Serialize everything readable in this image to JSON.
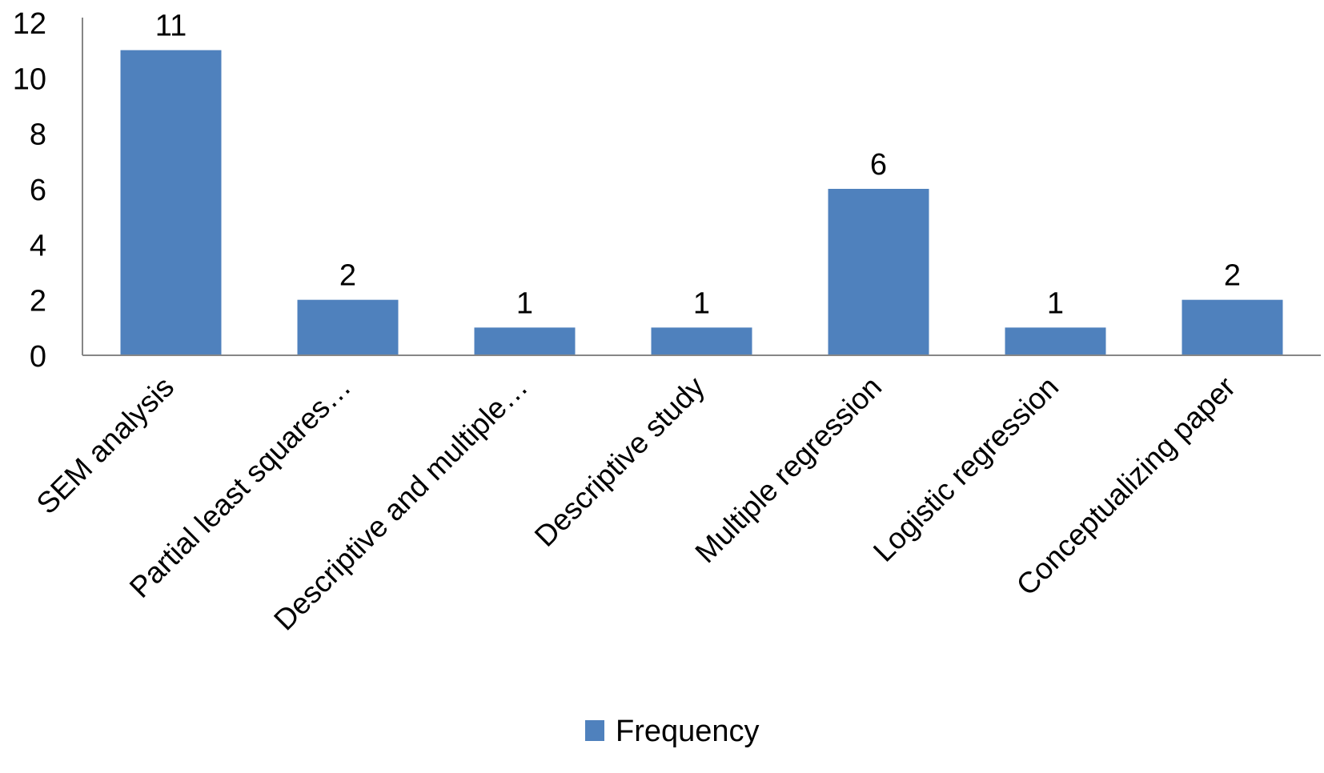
{
  "chart_data": {
    "type": "bar",
    "categories": [
      "SEM analysis",
      "Partial least squares…",
      "Descriptive and multiple…",
      "Descriptive study",
      "Multiple regression",
      "Logistic regression",
      "Conceptualizing paper"
    ],
    "series": [
      {
        "name": "Frequency",
        "values": [
          11,
          2,
          1,
          1,
          6,
          1,
          2
        ],
        "color": "#4F81BD"
      }
    ],
    "ylim": [
      0,
      12
    ],
    "yticks": [
      0,
      2,
      4,
      6,
      8,
      10,
      12
    ],
    "data_labels": true,
    "grid": false,
    "legend_position": "bottom",
    "title": "",
    "xlabel": "",
    "ylabel": ""
  }
}
